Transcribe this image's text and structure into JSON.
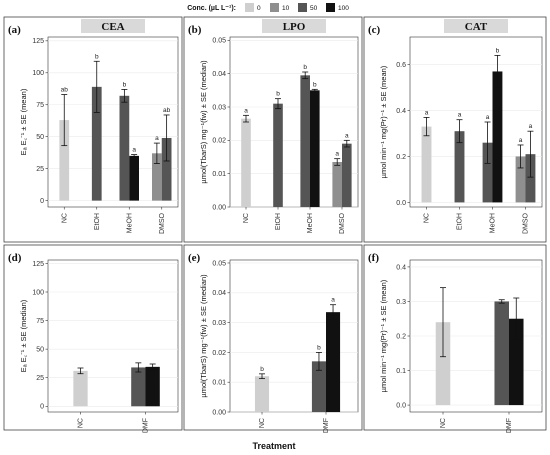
{
  "legend": {
    "title": "Conc. (µL L⁻¹):",
    "items": [
      {
        "label": "0",
        "color": "#cfcfcf"
      },
      {
        "label": "10",
        "color": "#8f8f8f"
      },
      {
        "label": "50",
        "color": "#555555"
      },
      {
        "label": "100",
        "color": "#111111"
      }
    ]
  },
  "x_title": "Treatment",
  "chart_data": [
    {
      "panel": "(a)",
      "strip": "CEA",
      "type": "bar",
      "ylabel": "Eₐ E꜀⁻¹ ± SE (mean)",
      "ylim": [
        -5,
        128
      ],
      "yticks": [
        "0",
        "25",
        "50",
        "75",
        "100",
        "125"
      ],
      "ytick_values": [
        0,
        25,
        50,
        75,
        100,
        125
      ],
      "categories": [
        "NC",
        "EtOH",
        "MeOH",
        "DMSO"
      ],
      "bars": [
        {
          "category": "NC",
          "conc": "0",
          "value": 63,
          "se": 20,
          "letter": "ab"
        },
        {
          "category": "EtOH",
          "conc": "50",
          "value": 89,
          "se": 20,
          "letter": "b"
        },
        {
          "category": "MeOH",
          "conc": "50",
          "value": 82,
          "se": 5,
          "letter": "b"
        },
        {
          "category": "MeOH",
          "conc": "100",
          "value": 35,
          "se": 1,
          "letter": "a"
        },
        {
          "category": "DMSO",
          "conc": "10",
          "value": 37,
          "se": 8,
          "letter": "a"
        },
        {
          "category": "DMSO",
          "conc": "50",
          "value": 49,
          "se": 18,
          "letter": "ab"
        }
      ]
    },
    {
      "panel": "(b)",
      "strip": "LPO",
      "type": "bar",
      "ylabel": "µmol(TbarS) mg⁻¹(fw) ± SE (median)",
      "ylim": [
        0,
        0.051
      ],
      "yticks": [
        "0.00",
        "0.01",
        "0.02",
        "0.03",
        "0.04",
        "0.05"
      ],
      "ytick_values": [
        0,
        0.01,
        0.02,
        0.03,
        0.04,
        0.05
      ],
      "categories": [
        "NC",
        "EtOH",
        "MeOH",
        "DMSO"
      ],
      "bars": [
        {
          "category": "NC",
          "conc": "0",
          "value": 0.0265,
          "se": 0.001,
          "letter": "a"
        },
        {
          "category": "EtOH",
          "conc": "50",
          "value": 0.031,
          "se": 0.0015,
          "letter": "b"
        },
        {
          "category": "MeOH",
          "conc": "50",
          "value": 0.0395,
          "se": 0.001,
          "letter": "b"
        },
        {
          "category": "MeOH",
          "conc": "100",
          "value": 0.035,
          "se": 0.0003,
          "letter": "b"
        },
        {
          "category": "DMSO",
          "conc": "10",
          "value": 0.0135,
          "se": 0.001,
          "letter": "a"
        },
        {
          "category": "DMSO",
          "conc": "50",
          "value": 0.019,
          "se": 0.001,
          "letter": "a"
        }
      ]
    },
    {
      "panel": "(c)",
      "strip": "CAT",
      "type": "bar",
      "ylabel": "µmol min⁻¹ mg(Pr)⁻¹ ± SE (mean)",
      "ylim": [
        -0.02,
        0.72
      ],
      "yticks": [
        "0.0",
        "0.2",
        "0.4",
        "0.6"
      ],
      "ytick_values": [
        0,
        0.2,
        0.4,
        0.6
      ],
      "categories": [
        "NC",
        "EtOH",
        "MeOH",
        "DMSO"
      ],
      "bars": [
        {
          "category": "NC",
          "conc": "0",
          "value": 0.33,
          "se": 0.04,
          "letter": "a"
        },
        {
          "category": "EtOH",
          "conc": "50",
          "value": 0.31,
          "se": 0.05,
          "letter": "a"
        },
        {
          "category": "MeOH",
          "conc": "50",
          "value": 0.26,
          "se": 0.09,
          "letter": "a"
        },
        {
          "category": "MeOH",
          "conc": "100",
          "value": 0.57,
          "se": 0.07,
          "letter": "b"
        },
        {
          "category": "DMSO",
          "conc": "10",
          "value": 0.2,
          "se": 0.05,
          "letter": "a"
        },
        {
          "category": "DMSO",
          "conc": "50",
          "value": 0.21,
          "se": 0.1,
          "letter": "a"
        }
      ]
    },
    {
      "panel": "(d)",
      "strip": "",
      "type": "bar",
      "ylabel": "Eₐ E꜀⁻¹ ± SE (median)",
      "ylim": [
        -5,
        128
      ],
      "yticks": [
        "0",
        "25",
        "50",
        "75",
        "100",
        "125"
      ],
      "ytick_values": [
        0,
        25,
        50,
        75,
        100,
        125
      ],
      "categories": [
        "NC",
        "DMF"
      ],
      "bars": [
        {
          "category": "NC",
          "conc": "0",
          "value": 31,
          "se": 2.5,
          "letter": ""
        },
        {
          "category": "DMF",
          "conc": "50",
          "value": 34,
          "se": 4,
          "letter": ""
        },
        {
          "category": "DMF",
          "conc": "100",
          "value": 34.5,
          "se": 2.5,
          "letter": ""
        }
      ]
    },
    {
      "panel": "(e)",
      "strip": "",
      "type": "bar",
      "ylabel": "µmol(TbarS) mg⁻¹(fw) ± SE (median)",
      "ylim": [
        0,
        0.051
      ],
      "yticks": [
        "0.00",
        "0.01",
        "0.02",
        "0.03",
        "0.04",
        "0.05"
      ],
      "ytick_values": [
        0,
        0.01,
        0.02,
        0.03,
        0.04,
        0.05
      ],
      "categories": [
        "NC",
        "DMF"
      ],
      "bars": [
        {
          "category": "NC",
          "conc": "0",
          "value": 0.012,
          "se": 0.0008,
          "letter": "b"
        },
        {
          "category": "DMF",
          "conc": "50",
          "value": 0.017,
          "se": 0.003,
          "letter": "b"
        },
        {
          "category": "DMF",
          "conc": "100",
          "value": 0.0335,
          "se": 0.0025,
          "letter": "a"
        }
      ]
    },
    {
      "panel": "(f)",
      "strip": "",
      "type": "bar",
      "ylabel": "µmol min⁻¹ mg(Pr)⁻¹ ± SE (mean)",
      "ylim": [
        -0.02,
        0.42
      ],
      "yticks": [
        "0.0",
        "0.1",
        "0.2",
        "0.3",
        "0.4"
      ],
      "ytick_values": [
        0,
        0.1,
        0.2,
        0.3,
        0.4
      ],
      "categories": [
        "NC",
        "DMF"
      ],
      "bars": [
        {
          "category": "NC",
          "conc": "0",
          "value": 0.24,
          "se": 0.1,
          "letter": ""
        },
        {
          "category": "DMF",
          "conc": "50",
          "value": 0.3,
          "se": 0.005,
          "letter": ""
        },
        {
          "category": "DMF",
          "conc": "100",
          "value": 0.25,
          "se": 0.06,
          "letter": ""
        }
      ]
    }
  ]
}
